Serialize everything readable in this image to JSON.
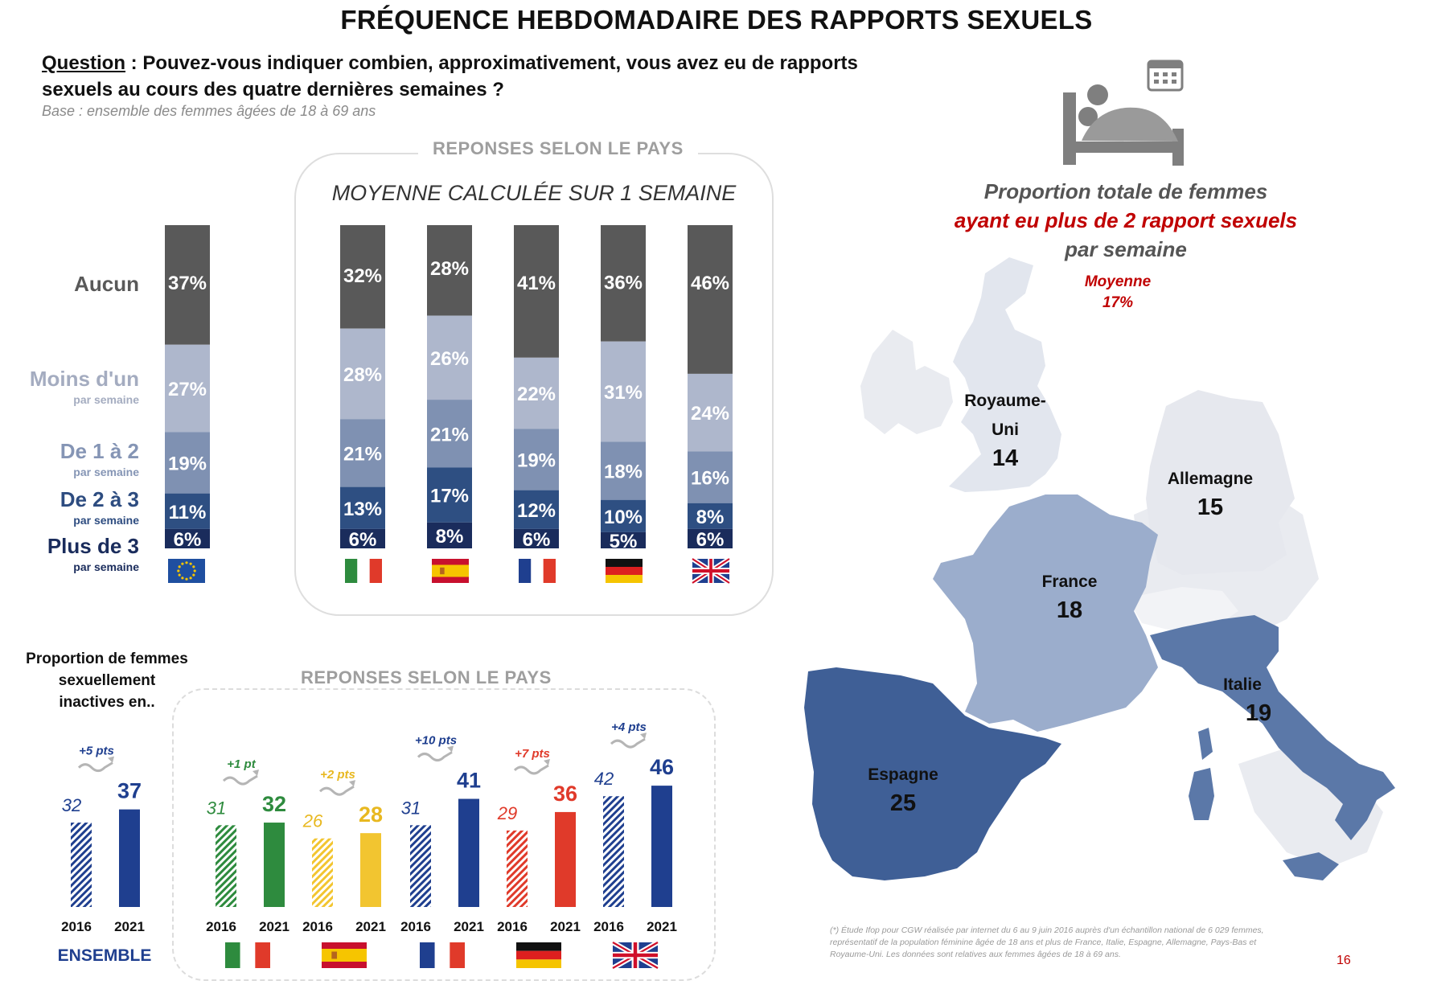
{
  "title": "FRÉQUENCE HEBDOMADAIRE DES RAPPORTS SEXUELS",
  "question": {
    "label": "Question",
    "separator": " : ",
    "text": "Pouvez-vous indiquer combien, approximativement, vous avez eu de rapports sexuels au cours des quatre dernières semaines ?"
  },
  "base": "Base :  ensemble des femmes âgées de 18 à 69 ans",
  "top_panel": {
    "caption": "REPONSES SELON  LE PAYS",
    "subtitle": "MOYENNE CALCULÉE SUR 1 SEMAINE"
  },
  "bottom_panel": {
    "caption": "REPONSES SELON  LE PAYS"
  },
  "bottom_intro": [
    "Proportion de femmes",
    "sexuellement",
    "inactives en.."
  ],
  "ensemble_label": "ENSEMBLE",
  "map": {
    "title_line1": "Proportion totale de femmes",
    "title_line2": "ayant eu plus de 2 rapport sexuels",
    "title_line3": "par semaine",
    "average_label": "Moyenne",
    "average_value": "17%",
    "icon": "calendar-bed-icon",
    "colors": {
      "gb": "#e2e6ee",
      "de": "#e6e8ee",
      "fr": "#9badcc",
      "it": "#5b78a8",
      "es": "#3f5f96",
      "others": "#e9ebf0"
    }
  },
  "footnote": "(*) Étude Ifop pour CGW réalisée par internet du 6 au 9 juin 2016 auprès d'un échantillon national de 6 029 femmes, représentatif de la population féminine âgée de 18 ans et plus de France, Italie, Espagne, Allemagne, Pays-Bas et Royaume-Uni. Les données sont relatives aux femmes âgées de 18 à 69 ans.",
  "footnote_lines": [
    "(*) Étude Ifop pour CGW réalisée par internet du 6 au 9 juin 2016 auprès d'un échantillon national de 6 029 femmes,",
    "représentatif de la population féminine âgée de 18 ans et plus de France, Italie, Espagne, Allemagne, Pays-Bas et",
    "Royaume-Uni. Les données sont relatives aux femmes âgées de 18 à 69 ans."
  ],
  "page_number": "16",
  "chart_data": [
    {
      "type": "bar",
      "stacked": true,
      "title": "MOYENNE CALCULÉE SUR 1 SEMAINE",
      "unit": "%",
      "categories": [
        "Europe",
        "Italie",
        "Espagne",
        "France",
        "Allemagne",
        "Royaume-Uni"
      ],
      "flags": [
        "eu",
        "it",
        "es",
        "fr",
        "de",
        "gb"
      ],
      "series": [
        {
          "name": "Aucun",
          "sublabel": "",
          "color": "#595959",
          "values": [
            37,
            32,
            28,
            41,
            36,
            46
          ]
        },
        {
          "name": "Moins d'un",
          "sublabel": "par semaine",
          "color": "#aeb7cc",
          "values": [
            27,
            28,
            26,
            22,
            31,
            24
          ]
        },
        {
          "name": "De 1 à 2",
          "sublabel": "par semaine",
          "color": "#7f91b2",
          "values": [
            19,
            21,
            21,
            19,
            18,
            16
          ]
        },
        {
          "name": "De 2 à 3",
          "sublabel": "par semaine",
          "color": "#2e4f82",
          "values": [
            11,
            13,
            17,
            12,
            10,
            8
          ]
        },
        {
          "name": "Plus de 3",
          "sublabel": "par semaine",
          "color": "#1a2c5c",
          "values": [
            6,
            6,
            8,
            6,
            5,
            6
          ]
        }
      ],
      "series_label_colors": [
        "#595959",
        "#a4acc0",
        "#8595b5",
        "#2d4c80",
        "#1a2c5c"
      ]
    },
    {
      "type": "bar",
      "title": "Proportion de femmes sexuellement inactives en..",
      "unit": "%",
      "x": [
        "2016",
        "2021"
      ],
      "groups": [
        {
          "name": "ENSEMBLE",
          "flag": "eu",
          "values": [
            32,
            37
          ],
          "color": "#1f3f8f",
          "change": "+5 pts",
          "change_color": "#1f3f8f"
        },
        {
          "name": "Italie",
          "flag": "it",
          "values": [
            31,
            32
          ],
          "color": "#2e8b3e",
          "change": "+1 pt",
          "change_color": "#2e8b3e"
        },
        {
          "name": "Espagne",
          "flag": "es",
          "values": [
            26,
            28
          ],
          "color": "#f2c530",
          "change": "+2 pts",
          "change_color": "#e8b820"
        },
        {
          "name": "France",
          "flag": "fr",
          "values": [
            31,
            41
          ],
          "color": "#1f3f8f",
          "change": "+10 pts",
          "change_color": "#1f3f8f"
        },
        {
          "name": "Allemagne",
          "flag": "de",
          "values": [
            29,
            36
          ],
          "color": "#e03a2a",
          "change": "+7 pts",
          "change_color": "#e03a2a"
        },
        {
          "name": "Royaume-Uni",
          "flag": "gb",
          "values": [
            42,
            46
          ],
          "color": "#1f3f8f",
          "change": "+4 pts",
          "change_color": "#1f3f8f"
        }
      ]
    },
    {
      "type": "map",
      "title": "Proportion totale de femmes ayant eu plus de 2 rapport sexuels par semaine",
      "average": "17%",
      "regions": [
        {
          "id": "gb",
          "name_lines": [
            "Royaume-",
            "Uni"
          ],
          "value": 14
        },
        {
          "id": "de",
          "name_lines": [
            "Allemagne"
          ],
          "value": 15
        },
        {
          "id": "fr",
          "name_lines": [
            "France"
          ],
          "value": 18
        },
        {
          "id": "it",
          "name_lines": [
            "Italie"
          ],
          "value": 19
        },
        {
          "id": "es",
          "name_lines": [
            "Espagne"
          ],
          "value": 25
        }
      ]
    }
  ]
}
